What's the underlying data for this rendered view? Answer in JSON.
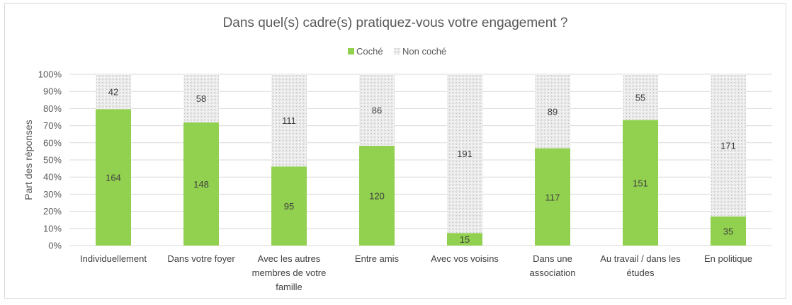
{
  "chart_data": {
    "type": "bar",
    "stacked": "percent",
    "title": "Dans quel(s) cadre(s) pratiquez-vous votre engagement ?",
    "ylabel": "Part des réponses",
    "xlabel": "",
    "ylim": [
      0,
      100
    ],
    "yticks": [
      "0%",
      "10%",
      "20%",
      "30%",
      "40%",
      "50%",
      "60%",
      "70%",
      "80%",
      "90%",
      "100%"
    ],
    "grid": true,
    "legend_position": "top",
    "categories": [
      [
        "Individuellement"
      ],
      [
        "Dans votre foyer"
      ],
      [
        "Avec les autres",
        "membres de votre",
        "famille"
      ],
      [
        "Entre amis"
      ],
      [
        "Avec vos voisins"
      ],
      [
        "Dans une",
        "association"
      ],
      [
        "Au travail / dans les",
        "études"
      ],
      [
        "En politique"
      ]
    ],
    "series": [
      {
        "name": "Coché",
        "color": "#92d050",
        "values": [
          164,
          148,
          95,
          120,
          15,
          117,
          151,
          35
        ]
      },
      {
        "name": "Non coché",
        "color": "#e6e6e6",
        "pattern": "dotted",
        "values": [
          42,
          58,
          111,
          86,
          191,
          89,
          55,
          171
        ]
      }
    ]
  }
}
